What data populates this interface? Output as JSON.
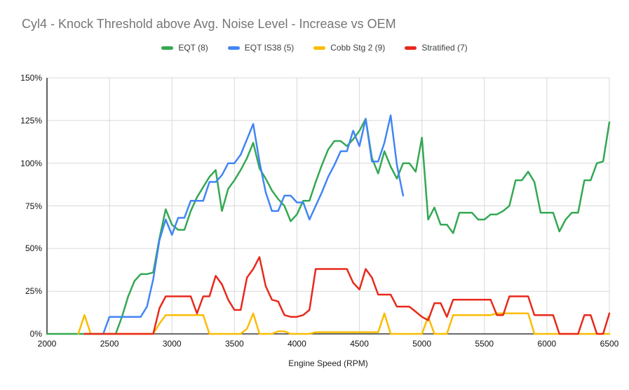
{
  "title": "Cyl4 - Knock Threshold above Avg. Noise Level - Increase vs OEM",
  "x_axis": {
    "title": "Engine Speed (RPM)",
    "ticks": [
      "2000",
      "2500",
      "3000",
      "3500",
      "4000",
      "4500",
      "5000",
      "5500",
      "6000",
      "6500"
    ]
  },
  "y_axis": {
    "ticks": [
      "0%",
      "25%",
      "50%",
      "75%",
      "100%",
      "125%",
      "150%"
    ]
  },
  "colors": {
    "eqt_green": "#34a853",
    "is38_blue": "#4285f4",
    "cobb_yellow": "#fbbc04",
    "stratified_red": "#e8291c"
  },
  "chart_data": {
    "type": "line",
    "title": "Cyl4 - Knock Threshold above Avg. Noise Level - Increase vs OEM",
    "xlabel": "Engine Speed (RPM)",
    "ylabel": "",
    "x_range": [
      2000,
      6500
    ],
    "y_range": [
      0,
      150
    ],
    "x_tick_step": 500,
    "y_tick_step": 25,
    "y_tick_format": "percent",
    "grid": true,
    "legend_position": "top",
    "series": [
      {
        "name": "EQT (8)",
        "color": "#34a853",
        "x_start": 2000,
        "x_step": 50,
        "values": [
          0,
          0,
          0,
          0,
          0,
          0,
          0,
          0,
          0,
          0,
          0,
          0,
          10,
          22,
          31,
          35,
          35,
          36,
          56,
          73,
          64,
          61,
          61,
          72,
          80,
          86,
          92,
          96,
          72,
          85,
          90,
          96,
          103,
          112,
          97,
          91,
          84,
          79,
          75,
          66,
          70,
          78,
          78,
          89,
          99,
          108,
          113,
          113,
          110,
          114,
          119,
          126,
          103,
          94,
          107,
          98,
          91,
          100,
          100,
          95,
          115,
          67,
          74,
          64,
          64,
          59,
          71,
          71,
          71,
          67,
          67,
          70,
          70,
          72,
          75,
          90,
          90,
          95,
          89,
          71,
          71,
          71,
          60,
          67,
          71,
          71,
          90,
          90,
          100,
          101,
          124
        ]
      },
      {
        "name": "EQT IS38 (5)",
        "color": "#4285f4",
        "x_start": 2400,
        "x_step": 50,
        "values": [
          0,
          0,
          10,
          10,
          10,
          10,
          10,
          10,
          16,
          32,
          55,
          67,
          58,
          68,
          68,
          78,
          78,
          78,
          89,
          89,
          93,
          100,
          100,
          105,
          114,
          123,
          101,
          83,
          72,
          72,
          81,
          81,
          77,
          77,
          67,
          75,
          83,
          92,
          99,
          107,
          107,
          119,
          110,
          126,
          101,
          101,
          112,
          128,
          99,
          81
        ]
      },
      {
        "name": "Cobb Stg 2 (9)",
        "color": "#fbbc04",
        "x_start": 2250,
        "x_step": 50,
        "values": [
          0,
          11,
          0,
          0,
          0,
          0,
          0,
          0,
          0,
          0,
          0,
          0,
          0,
          6,
          11,
          11,
          11,
          11,
          11,
          11,
          11,
          0,
          0,
          0,
          0,
          0,
          0,
          3,
          12,
          0,
          0,
          0,
          1.5,
          1.5,
          0,
          0,
          0,
          0,
          1,
          1,
          1,
          1,
          1,
          1,
          1,
          1,
          1,
          1,
          1,
          12,
          0,
          0,
          0,
          0,
          0,
          0,
          10,
          0,
          0,
          0,
          11,
          11,
          11,
          11,
          11,
          11,
          11,
          12,
          12,
          12,
          12,
          12,
          12,
          0,
          0,
          0,
          0,
          0,
          0,
          0,
          0,
          0,
          0,
          0,
          0,
          0
        ]
      },
      {
        "name": "Stratified (7)",
        "color": "#e8291c",
        "x_start": 2300,
        "x_step": 50,
        "values": [
          0,
          0,
          0,
          0,
          0,
          0,
          0,
          0,
          0,
          0,
          0,
          0,
          15,
          22,
          22,
          22,
          22,
          22,
          12,
          22,
          22,
          34,
          29,
          20,
          14,
          14,
          33,
          38,
          45,
          28,
          20,
          19,
          11,
          10,
          10,
          11,
          14,
          38,
          38,
          38,
          38,
          38,
          38,
          30,
          26,
          38,
          33,
          23,
          23,
          23,
          16,
          16,
          16,
          13,
          10,
          8,
          18,
          18,
          10,
          20,
          20,
          20,
          20,
          20,
          20,
          20,
          11,
          11,
          22,
          22,
          22,
          22,
          11,
          11,
          11,
          11,
          0,
          0,
          0,
          0,
          11,
          11,
          0,
          0,
          12
        ]
      }
    ]
  }
}
